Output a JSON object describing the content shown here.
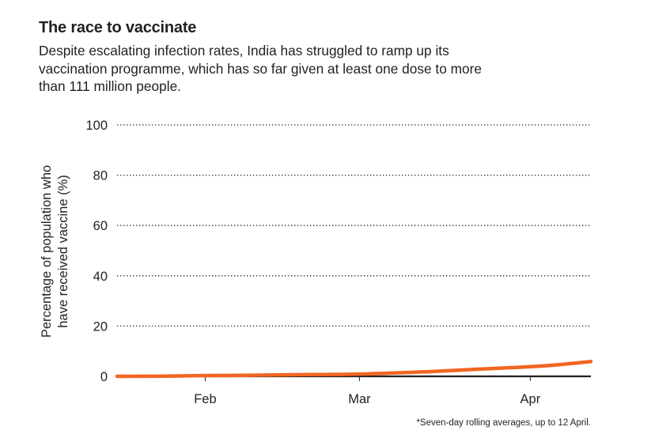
{
  "title": "The race to vaccinate",
  "subtitle": "Despite escalating infection rates, India has struggled to ramp up its vaccination programme, which has so far given at least one dose to more than 111 million people.",
  "footnote": "*Seven-day rolling averages, up to 12 April.",
  "chart_data": {
    "type": "line",
    "ylabel": "Percentage of population who have received vaccine (%)",
    "xlabel": "",
    "ylim": [
      0,
      100
    ],
    "yticks": [
      0,
      20,
      40,
      60,
      80,
      100
    ],
    "xlim": [
      "2021-01-16",
      "2021-04-12"
    ],
    "xticks": [
      {
        "label": "Feb",
        "date": "2021-02-01"
      },
      {
        "label": "Mar",
        "date": "2021-03-01"
      },
      {
        "label": "Apr",
        "date": "2021-04-01"
      }
    ],
    "grid": "horizontal-dotted",
    "series": [
      {
        "color": "#f26522",
        "x": [
          "2021-01-16",
          "2021-01-25",
          "2021-02-01",
          "2021-02-08",
          "2021-02-15",
          "2021-02-22",
          "2021-03-01",
          "2021-03-08",
          "2021-03-15",
          "2021-03-22",
          "2021-03-29",
          "2021-04-05",
          "2021-04-12"
        ],
        "values": [
          0,
          0.1,
          0.3,
          0.4,
          0.6,
          0.7,
          0.9,
          1.4,
          2.0,
          2.8,
          3.5,
          4.4,
          5.9
        ]
      }
    ]
  }
}
